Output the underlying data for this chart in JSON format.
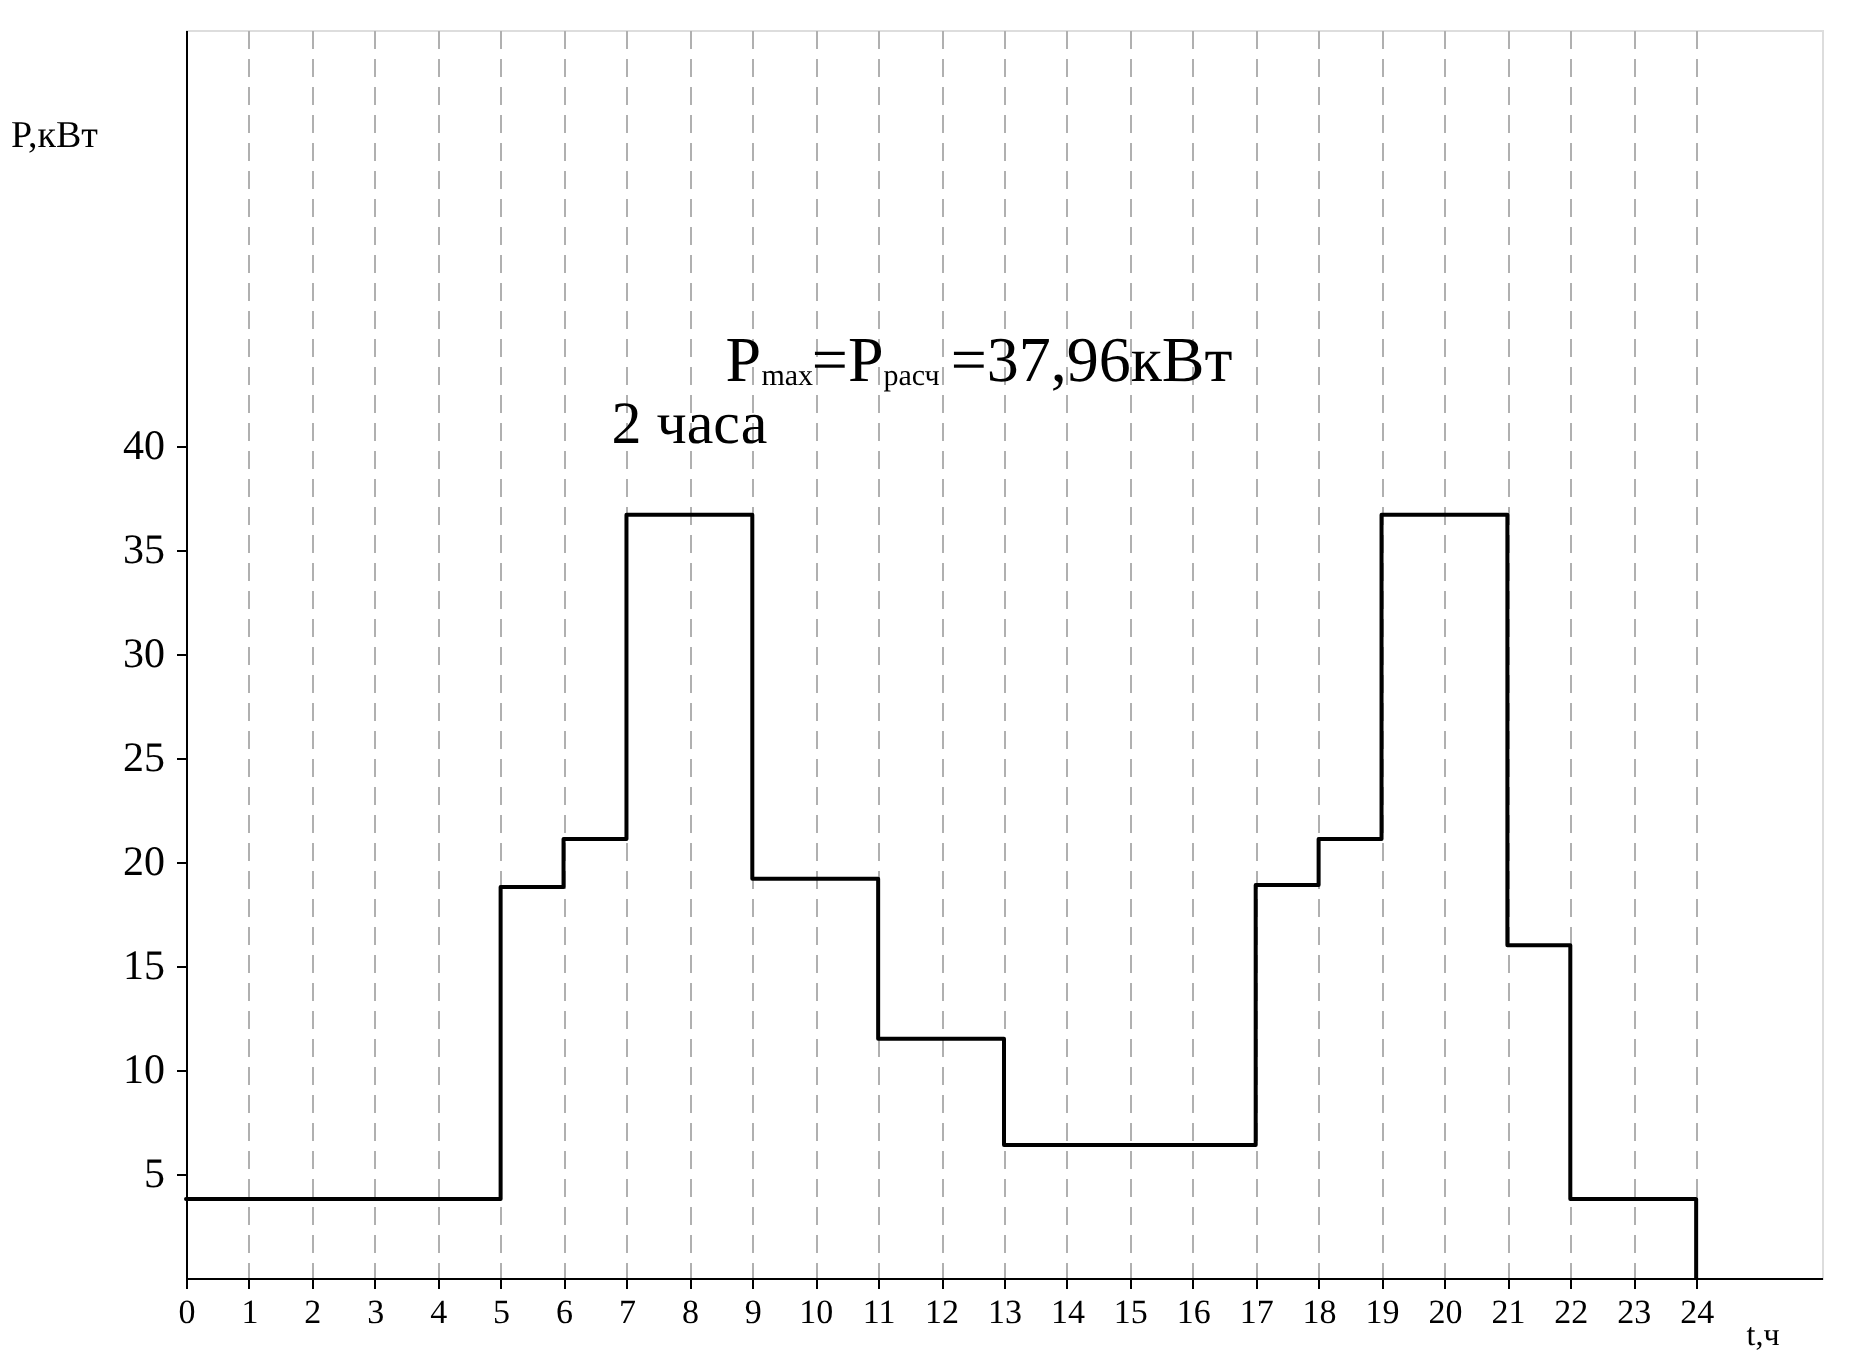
{
  "chart_data": {
    "type": "step",
    "xlabel": "t,ч",
    "ylabel": "P,кВт",
    "x": [
      0,
      5,
      6,
      7,
      9,
      11,
      13,
      17,
      18,
      19,
      21,
      22,
      24
    ],
    "series": [
      {
        "color": "#000000",
        "values": [
          3.8,
          18.8,
          21.1,
          36.7,
          19.2,
          11.5,
          6.4,
          18.9,
          21.1,
          36.7,
          16.0,
          3.8,
          0
        ]
      }
    ],
    "xlim": [
      0,
      26
    ],
    "ylim": [
      0,
      60
    ],
    "xticks": [
      0,
      1,
      2,
      3,
      4,
      5,
      6,
      7,
      8,
      9,
      10,
      11,
      12,
      13,
      14,
      15,
      16,
      17,
      18,
      19,
      20,
      21,
      22,
      23,
      24
    ],
    "yticks": [
      5,
      10,
      15,
      20,
      25,
      30,
      35,
      40
    ],
    "grid": "x",
    "annotations": [
      {
        "text": "2 часа",
        "x": 8,
        "y": 36.7
      },
      {
        "text": "P$_{max}$=P$_{расч}$=37,96кВт",
        "x": 8,
        "y": 36.7
      }
    ]
  }
}
